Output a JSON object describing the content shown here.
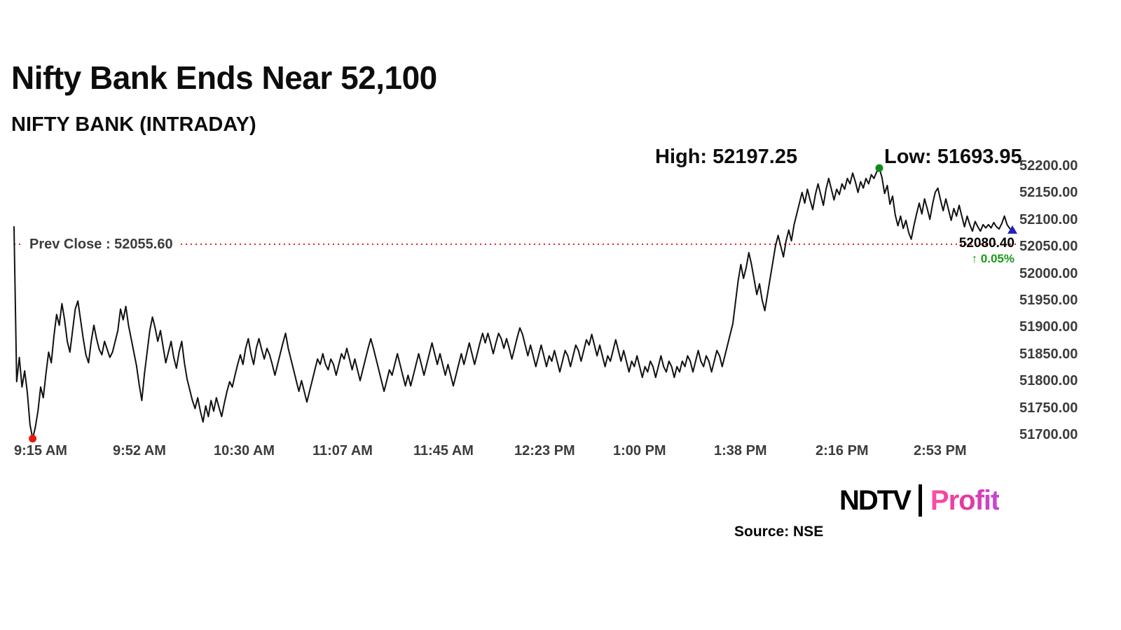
{
  "page": {
    "title": "Nifty Bank Ends Near 52,100",
    "subtitle": "NIFTY BANK (INTRADAY)"
  },
  "stats": {
    "high_label": "High: 52197.25",
    "low_label": "Low: 51693.95",
    "prev_close_label": "Prev Close : 52055.60",
    "last_price": "52080.40",
    "change": "↑ 0.05%"
  },
  "footer": {
    "source": "Source: NSE",
    "logo_ndtv": "NDTV",
    "logo_profit": "Profit"
  },
  "colors": {
    "line": "#111111",
    "prev_close": "#e8190f",
    "low_marker": "#e8190f",
    "high_marker": "#0e8a1a",
    "last_marker": "#2222b8",
    "change_green": "#169a16"
  },
  "chart_data": {
    "type": "line",
    "title": "NIFTY BANK (INTRADAY)",
    "ylim": [
      51700,
      52200
    ],
    "y_ticks": [
      "52200.00",
      "52150.00",
      "52100.00",
      "52050.00",
      "52000.00",
      "51950.00",
      "51900.00",
      "51850.00",
      "51800.00",
      "51750.00",
      "51700.00"
    ],
    "x_ticks": [
      {
        "label": "9:15 AM",
        "minute": 0
      },
      {
        "label": "9:52 AM",
        "minute": 37
      },
      {
        "label": "10:30 AM",
        "minute": 75
      },
      {
        "label": "11:07 AM",
        "minute": 112
      },
      {
        "label": "11:45 AM",
        "minute": 150
      },
      {
        "label": "12:23 PM",
        "minute": 188
      },
      {
        "label": "1:00 PM",
        "minute": 225
      },
      {
        "label": "1:38 PM",
        "minute": 263
      },
      {
        "label": "2:16 PM",
        "minute": 301
      },
      {
        "label": "2:53 PM",
        "minute": 338
      }
    ],
    "interval_minutes": 1,
    "high": 52197.25,
    "low": 51693.95,
    "prev_close": 52055.6,
    "last": 52080.4,
    "change_pct": 0.05,
    "legend": false,
    "grid": false,
    "prices": [
      52088,
      51800,
      51845,
      51790,
      51820,
      51780,
      51720,
      51693.95,
      51715,
      51745,
      51790,
      51770,
      51815,
      51855,
      51835,
      51885,
      51925,
      51905,
      51945,
      51915,
      51875,
      51855,
      51895,
      51935,
      51950,
      51915,
      51880,
      51850,
      51835,
      51875,
      51905,
      51880,
      51860,
      51850,
      51875,
      51860,
      51845,
      51855,
      51875,
      51895,
      51935,
      51915,
      51940,
      51905,
      51880,
      51855,
      51830,
      51795,
      51765,
      51815,
      51855,
      51895,
      51920,
      51900,
      51875,
      51895,
      51865,
      51835,
      51855,
      51875,
      51845,
      51825,
      51855,
      51875,
      51835,
      51805,
      51785,
      51765,
      51750,
      51770,
      51745,
      51725,
      51755,
      51735,
      51765,
      51745,
      51770,
      51752,
      51735,
      51760,
      51782,
      51800,
      51790,
      51812,
      51832,
      51850,
      51832,
      51862,
      51880,
      51852,
      51832,
      51862,
      51880,
      51860,
      51842,
      51862,
      51850,
      51832,
      51812,
      51832,
      51852,
      51872,
      51890,
      51862,
      51842,
      51822,
      51802,
      51782,
      51802,
      51782,
      51762,
      51782,
      51802,
      51822,
      51842,
      51832,
      51852,
      51832,
      51822,
      51842,
      51832,
      51812,
      51832,
      51852,
      51842,
      51862,
      51842,
      51822,
      51842,
      51822,
      51802,
      51822,
      51842,
      51862,
      51880,
      51862,
      51842,
      51822,
      51802,
      51782,
      51802,
      51822,
      51812,
      51832,
      51852,
      51832,
      51812,
      51792,
      51812,
      51792,
      51812,
      51832,
      51852,
      51832,
      51812,
      51832,
      51852,
      51872,
      51852,
      51832,
      51852,
      51832,
      51812,
      51832,
      51812,
      51792,
      51812,
      51832,
      51852,
      51832,
      51852,
      51872,
      51852,
      51832,
      51852,
      51872,
      51890,
      51872,
      51890,
      51872,
      51852,
      51872,
      51890,
      51880,
      51862,
      51880,
      51862,
      51842,
      51862,
      51882,
      51900,
      51888,
      51868,
      51848,
      51868,
      51848,
      51828,
      51848,
      51868,
      51848,
      51828,
      51848,
      51838,
      51858,
      51838,
      51818,
      51838,
      51858,
      51848,
      51828,
      51848,
      51868,
      51858,
      51838,
      51858,
      51878,
      51868,
      51888,
      51868,
      51848,
      51868,
      51848,
      51828,
      51848,
      51838,
      51858,
      51878,
      51858,
      51838,
      51858,
      51838,
      51818,
      51838,
      51828,
      51848,
      51828,
      51808,
      51828,
      51818,
      51838,
      51828,
      51808,
      51828,
      51848,
      51828,
      51818,
      51838,
      51828,
      51808,
      51828,
      51818,
      51838,
      51828,
      51848,
      51838,
      51818,
      51838,
      51858,
      51838,
      51828,
      51848,
      51838,
      51818,
      51838,
      51858,
      51848,
      51828,
      51848,
      51868,
      51888,
      51908,
      51948,
      51988,
      52018,
      51992,
      52012,
      52040,
      52018,
      51990,
      51962,
      51982,
      51952,
      51932,
      51962,
      51992,
      52022,
      52052,
      52072,
      52052,
      52032,
      52062,
      52082,
      52062,
      52092,
      52112,
      52132,
      52152,
      52132,
      52158,
      52138,
      52120,
      52148,
      52168,
      52148,
      52128,
      52158,
      52178,
      52158,
      52138,
      52158,
      52148,
      52168,
      52158,
      52178,
      52168,
      52188,
      52172,
      52152,
      52172,
      52160,
      52178,
      52168,
      52185,
      52178,
      52190,
      52197.25,
      52180,
      52150,
      52165,
      52130,
      52145,
      52110,
      52090,
      52108,
      52085,
      52100,
      52078,
      52065,
      52090,
      52112,
      52132,
      52112,
      52140,
      52122,
      52102,
      52130,
      52152,
      52160,
      52138,
      52118,
      52140,
      52120,
      52100,
      52122,
      52108,
      52128,
      52108,
      52088,
      52108,
      52092,
      52080,
      52098,
      52088,
      52080,
      52092,
      52086,
      52092,
      52086,
      52096,
      52088,
      52084,
      52094,
      52108,
      52092,
      52085,
      52080.4
    ]
  }
}
